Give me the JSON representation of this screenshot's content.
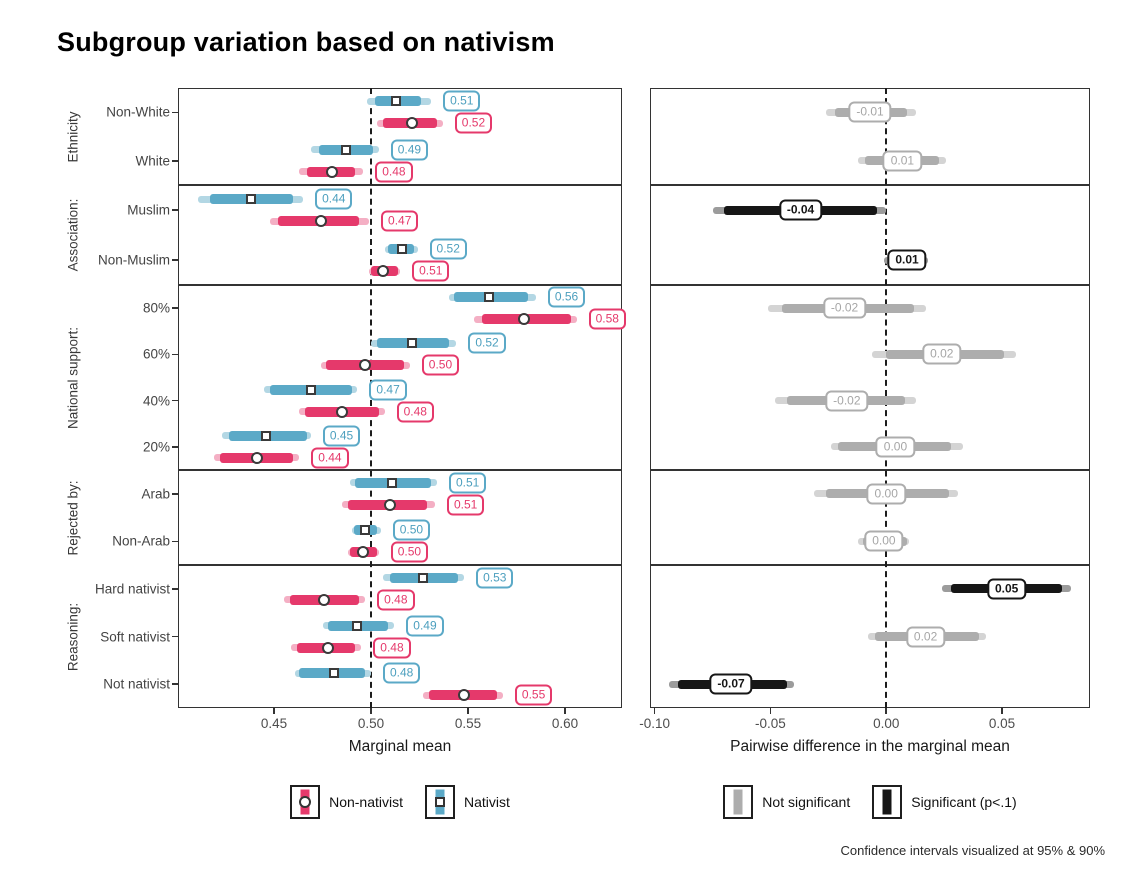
{
  "title": "Subgroup variation based on nativism",
  "footnote": "Confidence intervals visualized at 95% & 90%",
  "colors": {
    "nativist": "#5BA9C7",
    "nativist_light": "#B3D7E4",
    "nativist_text": "#4C9FBE",
    "non_nativist": "#E5396B",
    "non_nativist_light": "#F4AFC4",
    "non_nativist_text": "#E5396B",
    "significant": "#161616",
    "significant_light": "#9C9C9C",
    "not_significant": "#ADADAD",
    "not_significant_light": "#D4D4D4",
    "not_significant_text": "#A6A6A6"
  },
  "chart_data": {
    "type": "faceted dot-and-whisker (forest) plot, two panels",
    "left_panel": {
      "xlabel": "Marginal mean",
      "xticks": [
        "0.45",
        "0.50",
        "0.55",
        "0.60"
      ],
      "xtick_values": [
        0.45,
        0.5,
        0.55,
        0.6
      ],
      "xlim": [
        0.4005,
        0.6294
      ],
      "refline": 0.5
    },
    "right_panel": {
      "xlabel": "Pairwise difference in the marginal mean",
      "xticks": [
        "-0.10",
        "-0.05",
        "0.00",
        "0.05"
      ],
      "xtick_values": [
        -0.1,
        -0.05,
        0.0,
        0.05
      ],
      "xlim": [
        -0.102,
        0.088
      ],
      "refline": 0.0
    },
    "series_names": {
      "nativist": "Nativist",
      "non_nativist": "Non-nativist"
    },
    "facets": [
      {
        "label": "Ethnicity",
        "rows": [
          {
            "label": "Non-White",
            "nativist": {
              "est": 0.513,
              "text": "0.51",
              "ci90": [
                0.502,
                0.526
              ],
              "ci95": [
                0.498,
                0.531
              ]
            },
            "non_nativist": {
              "est": 0.521,
              "text": "0.52",
              "ci90": [
                0.506,
                0.534
              ],
              "ci95": [
                0.503,
                0.537
              ]
            },
            "diff": {
              "est": -0.007,
              "text": "-0.01",
              "significant": false,
              "ci90": [
                -0.022,
                0.009
              ],
              "ci95": [
                -0.026,
                0.013
              ]
            }
          },
          {
            "label": "White",
            "nativist": {
              "est": 0.487,
              "text": "0.49",
              "ci90": [
                0.473,
                0.501
              ],
              "ci95": [
                0.469,
                0.504
              ]
            },
            "non_nativist": {
              "est": 0.48,
              "text": "0.48",
              "ci90": [
                0.467,
                0.492
              ],
              "ci95": [
                0.463,
                0.496
              ]
            },
            "diff": {
              "est": 0.007,
              "text": "0.01",
              "significant": false,
              "ci90": [
                -0.009,
                0.023
              ],
              "ci95": [
                -0.012,
                0.026
              ]
            }
          }
        ]
      },
      {
        "label": "Association:",
        "rows": [
          {
            "label": "Muslim",
            "nativist": {
              "est": 0.438,
              "text": "0.44",
              "ci90": [
                0.417,
                0.46
              ],
              "ci95": [
                0.411,
                0.465
              ]
            },
            "non_nativist": {
              "est": 0.474,
              "text": "0.47",
              "ci90": [
                0.452,
                0.494
              ],
              "ci95": [
                0.448,
                0.499
              ]
            },
            "diff": {
              "est": -0.037,
              "text": "-0.04",
              "significant": true,
              "ci90": [
                -0.07,
                -0.004
              ],
              "ci95": [
                -0.075,
                0.0
              ]
            }
          },
          {
            "label": "Non-Muslim",
            "nativist": {
              "est": 0.516,
              "text": "0.52",
              "ci90": [
                0.509,
                0.522
              ],
              "ci95": [
                0.507,
                0.524
              ]
            },
            "non_nativist": {
              "est": 0.506,
              "text": "0.51",
              "ci90": [
                0.5,
                0.514
              ],
              "ci95": [
                0.499,
                0.515
              ]
            },
            "diff": {
              "est": 0.009,
              "text": "0.01",
              "significant": true,
              "ci90": [
                0.001,
                0.017
              ],
              "ci95": [
                -0.001,
                0.018
              ]
            }
          }
        ]
      },
      {
        "label": "National support:",
        "rows": [
          {
            "label": "80%",
            "nativist": {
              "est": 0.561,
              "text": "0.56",
              "ci90": [
                0.543,
                0.581
              ],
              "ci95": [
                0.54,
                0.585
              ]
            },
            "non_nativist": {
              "est": 0.579,
              "text": "0.58",
              "ci90": [
                0.557,
                0.603
              ],
              "ci95": [
                0.553,
                0.606
              ]
            },
            "diff": {
              "est": -0.018,
              "text": "-0.02",
              "significant": false,
              "ci90": [
                -0.045,
                0.012
              ],
              "ci95": [
                -0.051,
                0.017
              ]
            }
          },
          {
            "label": "60%",
            "nativist": {
              "est": 0.521,
              "text": "0.52",
              "ci90": [
                0.503,
                0.54
              ],
              "ci95": [
                0.5,
                0.544
              ]
            },
            "non_nativist": {
              "est": 0.497,
              "text": "0.50",
              "ci90": [
                0.477,
                0.517
              ],
              "ci95": [
                0.474,
                0.52
              ]
            },
            "diff": {
              "est": 0.024,
              "text": "0.02",
              "significant": false,
              "ci90": [
                0.0,
                0.051
              ],
              "ci95": [
                -0.006,
                0.056
              ]
            }
          },
          {
            "label": "40%",
            "nativist": {
              "est": 0.469,
              "text": "0.47",
              "ci90": [
                0.448,
                0.49
              ],
              "ci95": [
                0.445,
                0.493
              ]
            },
            "non_nativist": {
              "est": 0.485,
              "text": "0.48",
              "ci90": [
                0.466,
                0.504
              ],
              "ci95": [
                0.463,
                0.507
              ]
            },
            "diff": {
              "est": -0.017,
              "text": "-0.02",
              "significant": false,
              "ci90": [
                -0.043,
                0.008
              ],
              "ci95": [
                -0.048,
                0.013
              ]
            }
          },
          {
            "label": "20%",
            "nativist": {
              "est": 0.446,
              "text": "0.45",
              "ci90": [
                0.427,
                0.467
              ],
              "ci95": [
                0.423,
                0.469
              ]
            },
            "non_nativist": {
              "est": 0.441,
              "text": "0.44",
              "ci90": [
                0.422,
                0.46
              ],
              "ci95": [
                0.419,
                0.463
              ]
            },
            "diff": {
              "est": 0.004,
              "text": "0.00",
              "significant": false,
              "ci90": [
                -0.021,
                0.028
              ],
              "ci95": [
                -0.024,
                0.033
              ]
            }
          }
        ]
      },
      {
        "label": "Rejected by:",
        "rows": [
          {
            "label": "Arab",
            "nativist": {
              "est": 0.511,
              "text": "0.51",
              "ci90": [
                0.492,
                0.531
              ],
              "ci95": [
                0.489,
                0.534
              ]
            },
            "non_nativist": {
              "est": 0.51,
              "text": "0.51",
              "ci90": [
                0.488,
                0.529
              ],
              "ci95": [
                0.485,
                0.533
              ]
            },
            "diff": {
              "est": 0.0,
              "text": "0.00",
              "significant": false,
              "ci90": [
                -0.026,
                0.027
              ],
              "ci95": [
                -0.031,
                0.031
              ]
            }
          },
          {
            "label": "Non-Arab",
            "nativist": {
              "est": 0.497,
              "text": "0.50",
              "ci90": [
                0.491,
                0.503
              ],
              "ci95": [
                0.49,
                0.505
              ]
            },
            "non_nativist": {
              "est": 0.496,
              "text": "0.50",
              "ci90": [
                0.489,
                0.503
              ],
              "ci95": [
                0.488,
                0.504
              ]
            },
            "diff": {
              "est": -0.001,
              "text": "0.00",
              "significant": false,
              "ci90": [
                -0.01,
                0.009
              ],
              "ci95": [
                -0.012,
                0.01
              ]
            }
          }
        ]
      },
      {
        "label": "Reasoning:",
        "rows": [
          {
            "label": "Hard nativist",
            "nativist": {
              "est": 0.527,
              "text": "0.53",
              "ci90": [
                0.51,
                0.545
              ],
              "ci95": [
                0.506,
                0.548
              ]
            },
            "non_nativist": {
              "est": 0.476,
              "text": "0.48",
              "ci90": [
                0.458,
                0.494
              ],
              "ci95": [
                0.455,
                0.497
              ]
            },
            "diff": {
              "est": 0.052,
              "text": "0.05",
              "significant": true,
              "ci90": [
                0.028,
                0.076
              ],
              "ci95": [
                0.024,
                0.08
              ]
            }
          },
          {
            "label": "Soft nativist",
            "nativist": {
              "est": 0.493,
              "text": "0.49",
              "ci90": [
                0.478,
                0.509
              ],
              "ci95": [
                0.475,
                0.512
              ]
            },
            "non_nativist": {
              "est": 0.478,
              "text": "0.48",
              "ci90": [
                0.462,
                0.492
              ],
              "ci95": [
                0.459,
                0.495
              ]
            },
            "diff": {
              "est": 0.017,
              "text": "0.02",
              "significant": false,
              "ci90": [
                -0.005,
                0.04
              ],
              "ci95": [
                -0.008,
                0.043
              ]
            }
          },
          {
            "label": "Not nativist",
            "nativist": {
              "est": 0.481,
              "text": "0.48",
              "ci90": [
                0.463,
                0.497
              ],
              "ci95": [
                0.461,
                0.5
              ]
            },
            "non_nativist": {
              "est": 0.548,
              "text": "0.55",
              "ci90": [
                0.53,
                0.565
              ],
              "ci95": [
                0.527,
                0.568
              ]
            },
            "diff": {
              "est": -0.067,
              "text": "-0.07",
              "significant": true,
              "ci90": [
                -0.09,
                -0.043
              ],
              "ci95": [
                -0.094,
                -0.04
              ]
            }
          }
        ]
      }
    ],
    "legend_left": [
      {
        "label": "Non-nativist",
        "marker": "circle",
        "series": "non_nativist"
      },
      {
        "label": "Nativist",
        "marker": "square",
        "series": "nativist"
      }
    ],
    "legend_right": [
      {
        "label": "Not significant",
        "series": "not_significant"
      },
      {
        "label": "Significant (p<.1)",
        "series": "significant"
      }
    ]
  }
}
